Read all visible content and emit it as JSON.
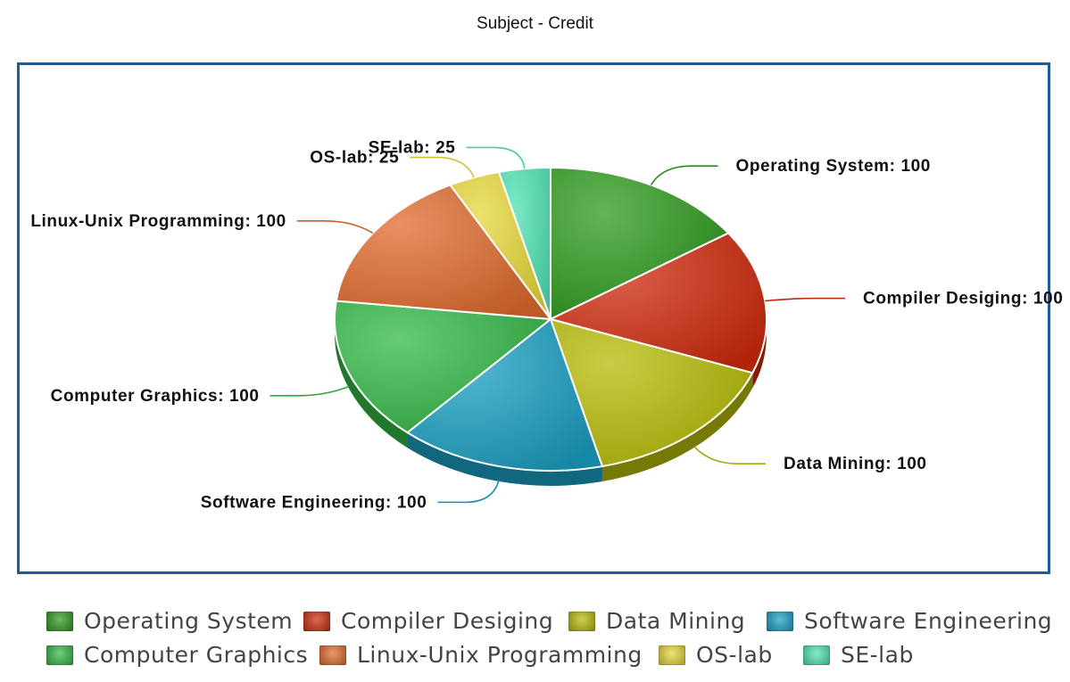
{
  "chart_data": {
    "type": "pie",
    "title": "Subject - Credit",
    "categories": [
      "Operating System",
      "Compiler Desiging",
      "Data Mining",
      "Software Engineering",
      "Computer Graphics",
      "Linux-Unix Programming",
      "OS-lab",
      "SE-lab"
    ],
    "values": [
      100,
      100,
      100,
      100,
      100,
      100,
      25,
      25
    ],
    "colors": [
      "#2e9a1e",
      "#cf2a0c",
      "#b6bb06",
      "#1a9fc1",
      "#33b845",
      "#e06a2c",
      "#e6d73a",
      "#4fe2b4"
    ],
    "data_labels": [
      "Operating System: 100",
      "Compiler Desiging: 100",
      "Data Mining: 100",
      "Software Engineering: 100",
      "Computer Graphics: 100",
      "Linux-Unix Programming: 100",
      "OS-lab: 25",
      "SE-lab: 25"
    ],
    "legend_position": "bottom",
    "style": "3d"
  }
}
